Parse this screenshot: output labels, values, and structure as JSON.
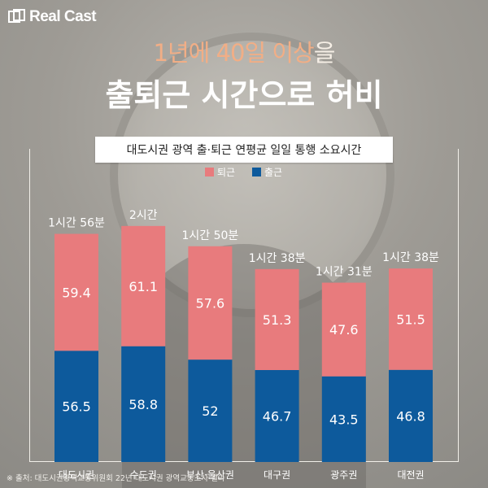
{
  "brand": {
    "logo_text": "Real Cast"
  },
  "headline": {
    "line1_highlight_a": "1년에 40일 이상",
    "line1_plain": "을",
    "line2": "출퇴근 시간으로 허비"
  },
  "source_note": "※ 출처: 대도시권광역교통위원회 22년 대도시권 광역교통조사 결과",
  "colors": {
    "commute_out": "#e87b7d",
    "commute_in": "#0d5a9c",
    "label": "#ffffff"
  },
  "chart_data": {
    "type": "bar",
    "stacked": true,
    "title": "대도시권 광역 출·퇴근 연평균 일일 통행 소요시간",
    "categories": [
      "대도시권",
      "수도권",
      "부산·울산권",
      "대구권",
      "광주권",
      "대전권"
    ],
    "series": [
      {
        "name": "출근",
        "values": [
          56.5,
          58.8,
          52,
          46.7,
          43.5,
          46.8
        ]
      },
      {
        "name": "퇴근",
        "values": [
          59.4,
          61.1,
          57.6,
          51.3,
          47.6,
          51.5
        ]
      }
    ],
    "value_labels": {
      "출근": [
        "56.5",
        "58.8",
        "52",
        "46.7",
        "43.5",
        "46.8"
      ],
      "퇴근": [
        "59.4",
        "61.1",
        "57.6",
        "51.3",
        "47.6",
        "51.5"
      ]
    },
    "totals_labels": [
      "1시간 56분",
      "2시간",
      "1시간 50분",
      "1시간 38분",
      "1시간 31분",
      "1시간 38분"
    ],
    "legend": [
      "퇴근",
      "출근"
    ],
    "legend_position": "top-center",
    "xlabel": "",
    "ylabel": "",
    "ylim": [
      0,
      140
    ]
  }
}
